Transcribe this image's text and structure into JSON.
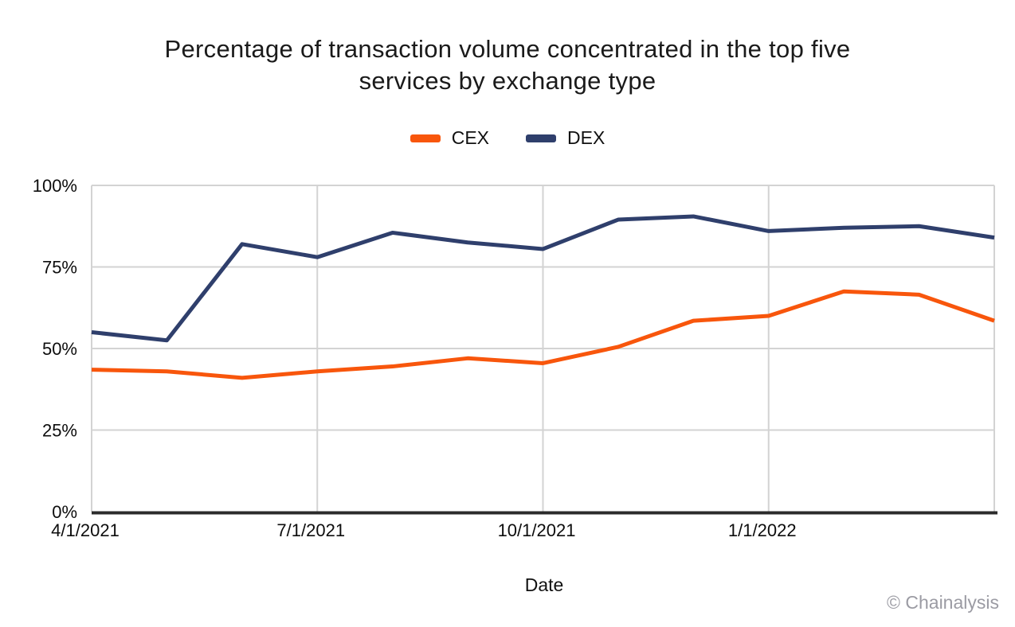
{
  "title": {
    "line1": "Percentage of transaction volume concentrated in the top five",
    "line2": "services by exchange type"
  },
  "legend": [
    {
      "label": "CEX",
      "color": "#F8560C"
    },
    {
      "label": "DEX",
      "color": "#2F3F6C"
    }
  ],
  "chart_data": {
    "type": "line",
    "title": "Percentage of transaction volume concentrated in the top five services by exchange type",
    "xlabel": "Date",
    "ylabel": "",
    "ylim": [
      0,
      100
    ],
    "grid": true,
    "legend_position": "top",
    "x": [
      "4/1/2021",
      "5/1/2021",
      "6/1/2021",
      "7/1/2021",
      "8/1/2021",
      "9/1/2021",
      "10/1/2021",
      "11/1/2021",
      "12/1/2021",
      "1/1/2022",
      "2/1/2022",
      "3/1/2022",
      "4/1/2022"
    ],
    "series": [
      {
        "name": "CEX",
        "color": "#F8560C",
        "values": [
          43.5,
          43,
          41,
          43,
          44.5,
          47,
          45.5,
          50.5,
          58.5,
          60,
          67.5,
          66.5,
          58.5
        ]
      },
      {
        "name": "DEX",
        "color": "#2F3F6C",
        "values": [
          55,
          52.5,
          82,
          78,
          85.5,
          82.5,
          80.5,
          89.5,
          90.5,
          86,
          87,
          87.5,
          84
        ]
      }
    ],
    "y_ticks": [
      0,
      25,
      50,
      75,
      100
    ],
    "y_tick_labels": [
      "0%",
      "25%",
      "50%",
      "75%",
      "100%"
    ],
    "x_tick_indices": [
      0,
      3,
      6,
      9
    ],
    "x_tick_labels": [
      "4/1/2021",
      "7/1/2021",
      "10/1/2021",
      "1/1/2022"
    ]
  },
  "xaxis_title": "Date",
  "watermark": "© Chainalysis",
  "colors": {
    "grid": "#D3D3D3",
    "axis": "#2B2B2B",
    "tick_text": "#0D0D0D",
    "title_text": "#1A1A1A",
    "watermark": "#9B9BA3",
    "background": "#FFFFFF"
  }
}
